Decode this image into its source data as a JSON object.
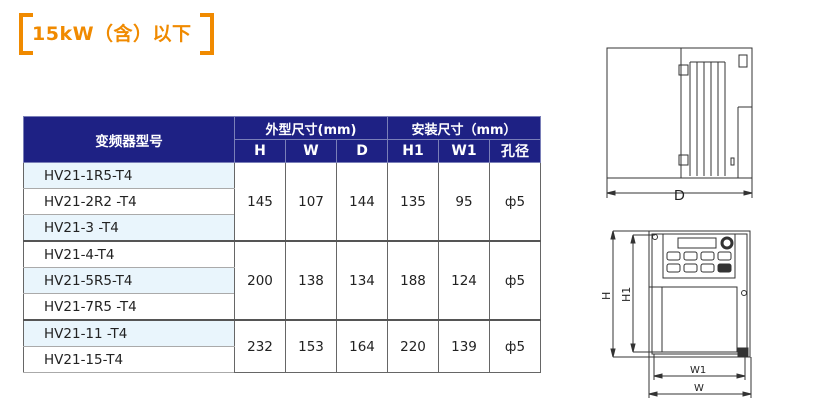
{
  "heading": "15kW（含）以下",
  "table": {
    "model_header": "变频器型号",
    "group_headers": [
      "外型尺寸(mm)",
      "安装尺寸（mm）"
    ],
    "sub_headers": [
      "H",
      "W",
      "D",
      "H1",
      "W1",
      "孔径"
    ],
    "groups": [
      {
        "models": [
          "HV21-1R5-T4",
          "HV21-2R2 -T4",
          "HV21-3 -T4"
        ],
        "values": [
          "145",
          "107",
          "144",
          "135",
          "95",
          "ф5"
        ]
      },
      {
        "models": [
          "HV21-4-T4",
          "HV21-5R5-T4",
          "HV21-7R5 -T4"
        ],
        "values": [
          "200",
          "138",
          "134",
          "188",
          "124",
          "ф5"
        ]
      },
      {
        "models": [
          "HV21-11 -T4",
          "HV21-15-T4"
        ],
        "values": [
          "232",
          "153",
          "164",
          "220",
          "139",
          "ф5"
        ]
      }
    ]
  },
  "drawing": {
    "side_label": "D",
    "front_labels": {
      "h": "H",
      "h1": "H1",
      "w1": "W1",
      "w": "W"
    }
  },
  "colors": {
    "accent": "#f08a00",
    "header_bg": "#1e2184",
    "row_highlight": "#e9f5fc"
  }
}
